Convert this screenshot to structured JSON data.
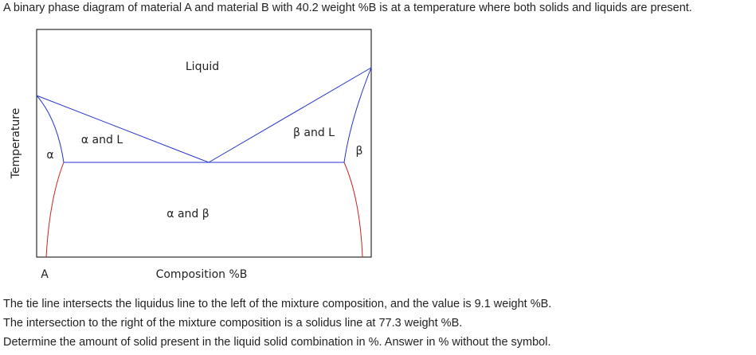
{
  "question": {
    "intro": "A binary phase diagram of material A and material B with 40.2 weight %B is at a temperature where both solids and liquids are present.",
    "lines": [
      "The tie line intersects the liquidus line to the left of the mixture composition, and the value is 9.1 weight %B.",
      "The intersection to the right of the mixture composition is a solidus line at 77.3 weight %B.",
      "Determine the amount of solid present in the liquid solid combination in %. Answer in % without the symbol."
    ]
  },
  "diagram": {
    "regions": {
      "liquid": "Liquid",
      "alpha_l": "α and L",
      "beta_l": "β and L",
      "alpha": "α",
      "beta": "β",
      "alpha_beta": "α and β"
    },
    "y_axis": "Temperature",
    "x_axis": "Composition %B",
    "x_start": "A"
  }
}
